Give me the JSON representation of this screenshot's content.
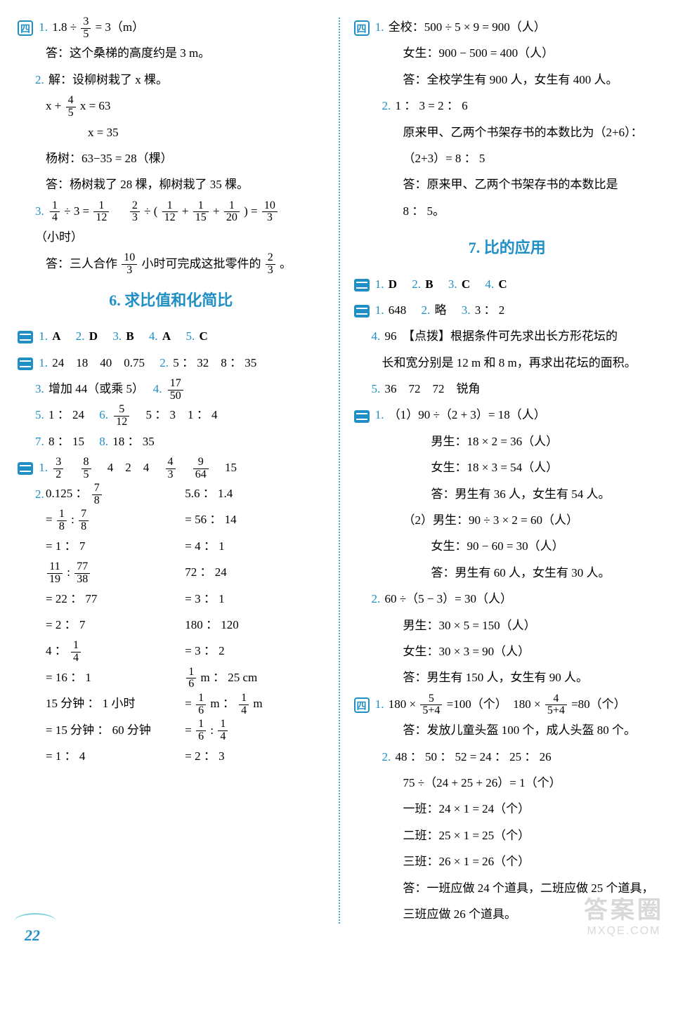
{
  "page_number": "22",
  "watermark": {
    "line1": "答案圈",
    "line2": "MXQE.COM"
  },
  "left": {
    "sec4": {
      "badge": "四",
      "q1": {
        "num": "1.",
        "eq": "1.8 ÷ ",
        "frac": {
          "t": "3",
          "b": "5"
        },
        "tail": " = 3（m）",
        "ans": "答：这个桑梯的高度约是 3 m。"
      },
      "q2": {
        "num": "2.",
        "l1": "解：设柳树栽了 x 棵。",
        "eq_l": "x + ",
        "frac": {
          "t": "4",
          "b": "5"
        },
        "eq_r": " x = 63",
        "l3": "x = 35",
        "l4": "杨树：63−35 = 28（棵）",
        "ans": "答：杨树栽了 28 棵，柳树栽了 35 棵。"
      },
      "q3": {
        "num": "3.",
        "seg1": {
          "f1": {
            "t": "1",
            "b": "4"
          },
          "mid": " ÷ 3 = ",
          "f2": {
            "t": "1",
            "b": "12"
          }
        },
        "seg2": {
          "lead": "　",
          "f1": {
            "t": "2",
            "b": "3"
          },
          "mid": " ÷ ( ",
          "f2": {
            "t": "1",
            "b": "12"
          },
          "p": " + ",
          "f3": {
            "t": "1",
            "b": "15"
          },
          "p2": " + ",
          "f4": {
            "t": "1",
            "b": "20"
          },
          "tail": " ) = ",
          "f5": {
            "t": "10",
            "b": "3"
          },
          "unit": "（小时）"
        },
        "ans_l": "答：三人合作",
        "ans_f1": {
          "t": "10",
          "b": "3"
        },
        "ans_m": "小时可完成这批零件的",
        "ans_f2": {
          "t": "2",
          "b": "3"
        },
        "ans_r": "。"
      }
    },
    "title6": "6. 求比值和化简比",
    "s6a": {
      "q1": "A",
      "q2": "D",
      "q3": "B",
      "q4": "A",
      "q5": "C"
    },
    "s6b": {
      "q1": "24　18　40　0.75",
      "q2": "5 ： 32　8 ： 35",
      "q3": "增加 44（或乘 5）",
      "q4": {
        "t": "17",
        "b": "50"
      },
      "q5": "1 ： 24",
      "q6": {
        "f": {
          "t": "5",
          "b": "12"
        },
        "tail": "　5 ： 3　1 ： 4"
      },
      "q7": "8 ： 15",
      "q8": "18 ： 35"
    },
    "s6c": {
      "q1": {
        "f1": {
          "t": "3",
          "b": "2"
        },
        "f2": {
          "t": "8",
          "b": "5"
        },
        "mid": "　4　2　4　",
        "f3": {
          "t": "4",
          "b": "3"
        },
        "f4": {
          "t": "9",
          "b": "64"
        },
        "tail": "　15"
      },
      "q2": {
        "colA": [
          {
            "type": "head",
            "pre": "0.125 ： ",
            "f": {
              "t": "7",
              "b": "8"
            }
          },
          {
            "type": "frac2",
            "pre": "= ",
            "f1": {
              "t": "1",
              "b": "8"
            },
            "mid": " : ",
            "f2": {
              "t": "7",
              "b": "8"
            }
          },
          {
            "type": "txt",
            "v": "= 1 ： 7"
          },
          {
            "type": "frac2",
            "pre": "",
            "f1": {
              "t": "11",
              "b": "19"
            },
            "mid": " : ",
            "f2": {
              "t": "77",
              "b": "38"
            }
          },
          {
            "type": "txt",
            "v": "= 22 ： 77"
          },
          {
            "type": "txt",
            "v": "= 2 ： 7"
          },
          {
            "type": "headf",
            "pre": "4 ： ",
            "f": {
              "t": "1",
              "b": "4"
            }
          },
          {
            "type": "txt",
            "v": "= 16 ： 1"
          },
          {
            "type": "txt",
            "v": "15 分钟 ： 1 小时"
          },
          {
            "type": "txt",
            "v": "= 15 分钟 ： 60 分钟"
          },
          {
            "type": "txt",
            "v": "= 1 ： 4"
          }
        ],
        "colB": [
          {
            "type": "txt",
            "v": "5.6 ： 1.4"
          },
          {
            "type": "txt",
            "v": "= 56 ： 14"
          },
          {
            "type": "txt",
            "v": "= 4 ： 1"
          },
          {
            "type": "txt",
            "v": "72 ： 24"
          },
          {
            "type": "txt",
            "v": "= 3 ： 1"
          },
          {
            "type": "txt",
            "v": ""
          },
          {
            "type": "txt",
            "v": "180 ： 120"
          },
          {
            "type": "txt",
            "v": "= 3 ： 2"
          },
          {
            "type": "fracunit",
            "pre": "",
            "f": {
              "t": "1",
              "b": "6"
            },
            "tail": " m ： 25 cm"
          },
          {
            "type": "frac2u",
            "pre": "= ",
            "f1": {
              "t": "1",
              "b": "6"
            },
            "mid": " m ： ",
            "f2": {
              "t": "1",
              "b": "4"
            },
            "tail": " m"
          },
          {
            "type": "frac2",
            "pre": "= ",
            "f1": {
              "t": "1",
              "b": "6"
            },
            "mid": " : ",
            "f2": {
              "t": "1",
              "b": "4"
            }
          },
          {
            "type": "txt",
            "v": "= 2 ： 3"
          }
        ]
      }
    }
  },
  "right": {
    "sec4": {
      "badge": "四",
      "q1": {
        "num": "1.",
        "l1": "全校：500 ÷ 5 × 9 = 900（人）",
        "l2": "女生：900 − 500 = 400（人）",
        "ans": "答：全校学生有 900 人，女生有 400 人。"
      },
      "q2": {
        "num": "2.",
        "l1": "1 ： 3 = 2 ： 6",
        "l2": "原来甲、乙两个书架存书的本数比为（2+6）：",
        "l3": "（2+3）= 8 ： 5",
        "ans": "答：原来甲、乙两个书架存书的本数比是",
        "ans2": "8 ： 5。"
      }
    },
    "title7": "7. 比的应用",
    "s7a": {
      "q1": "D",
      "q2": "B",
      "q3": "C",
      "q4": "C"
    },
    "s7b": {
      "q1": "648",
      "q2": "略",
      "q3": "3 ： 2",
      "q4": "96　【点拨】根据条件可先求出长方形花坛的",
      "q4b": "长和宽分别是 12 m 和 8 m，再求出花坛的面积。",
      "q5": "36　72　72　锐角"
    },
    "s7c": {
      "q1": {
        "p1": "（1）90 ÷（2 + 3）= 18（人）",
        "p1a": "男生：18 × 2 = 36（人）",
        "p1b": "女生：18 × 3 = 54（人）",
        "p1ans": "答：男生有 36 人，女生有 54 人。",
        "p2": "（2）男生：90 ÷ 3 × 2 = 60（人）",
        "p2a": "女生：90 − 60 = 30（人）",
        "p2ans": "答：男生有 60 人，女生有 30 人。"
      },
      "q2": {
        "l1": "60 ÷（5 − 3）= 30（人）",
        "l2": "男生：30 × 5 = 150（人）",
        "l3": "女生：30 × 3 = 90（人）",
        "ans": "答：男生有 150 人，女生有 90 人。"
      }
    },
    "s7d": {
      "badge": "四",
      "q1": {
        "pre": "180 × ",
        "f1": {
          "t": "5",
          "b": "5+4"
        },
        "mid": " =100（个）　180 × ",
        "f2": {
          "t": "4",
          "b": "5+4"
        },
        "tail": " =80（个）",
        "ans": "答：发放儿童头盔 100 个，成人头盔 80 个。"
      },
      "q2": {
        "l1": "48 ： 50 ： 52 = 24 ： 25 ： 26",
        "l2": "75 ÷（24 + 25 + 26）= 1（个）",
        "l3": "一班：24 × 1 = 24（个）",
        "l4": "二班：25 × 1 = 25（个）",
        "l5": "三班：26 × 1 = 26（个）",
        "ans": "答：一班应做 24 个道具，二班应做 25 个道具，",
        "ans2": "三班应做 26 个道具。"
      }
    }
  }
}
